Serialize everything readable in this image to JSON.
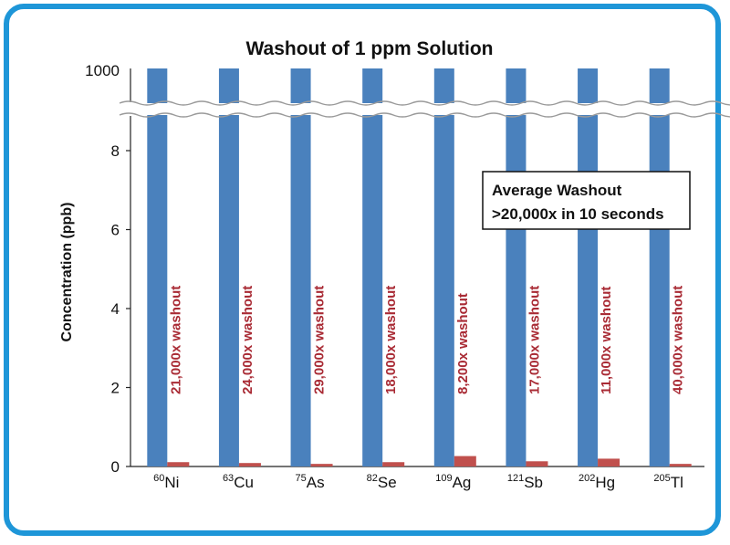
{
  "chart_data": {
    "type": "bar",
    "title": "Washout of 1 ppm Solution",
    "ylabel": "Concentration (ppb)",
    "xlabel": "",
    "axis_break": true,
    "lower_ylim": [
      0,
      8.8
    ],
    "lower_yticks": [
      "0",
      "2",
      "4",
      "6",
      "8"
    ],
    "upper_yticks": [
      "1000"
    ],
    "categories": [
      {
        "isotope": "60",
        "element": "Ni"
      },
      {
        "isotope": "63",
        "element": "Cu"
      },
      {
        "isotope": "75",
        "element": "As"
      },
      {
        "isotope": "82",
        "element": "Se"
      },
      {
        "isotope": "109",
        "element": "Ag"
      },
      {
        "isotope": "121",
        "element": "Sb"
      },
      {
        "isotope": "202",
        "element": "Hg"
      },
      {
        "isotope": "205",
        "element": "Tl"
      }
    ],
    "series": [
      {
        "values": [
          1000,
          1000,
          1000,
          1000,
          1000,
          1000,
          1000,
          1000
        ],
        "color": "#4a81bd"
      },
      {
        "values": [
          0.05,
          0.04,
          0.03,
          0.05,
          0.12,
          0.06,
          0.09,
          0.03
        ],
        "color": "#c0504d"
      }
    ],
    "annotations": [
      "21,000x washout",
      "24,000x washout",
      "29,000x washout",
      "18,000x  washout",
      "8,200x washout",
      "17,000x  washout",
      "11,000x washout",
      "40,000x washout"
    ],
    "callout": {
      "line1": "Average Washout",
      "line2": ">20,000x in 10 seconds"
    },
    "grid": false,
    "legend": "none"
  },
  "colors": {
    "frame": "#1e96d8",
    "bar_blue": "#4a81bd",
    "bar_red": "#c0504d",
    "annotation": "#a92b35"
  }
}
